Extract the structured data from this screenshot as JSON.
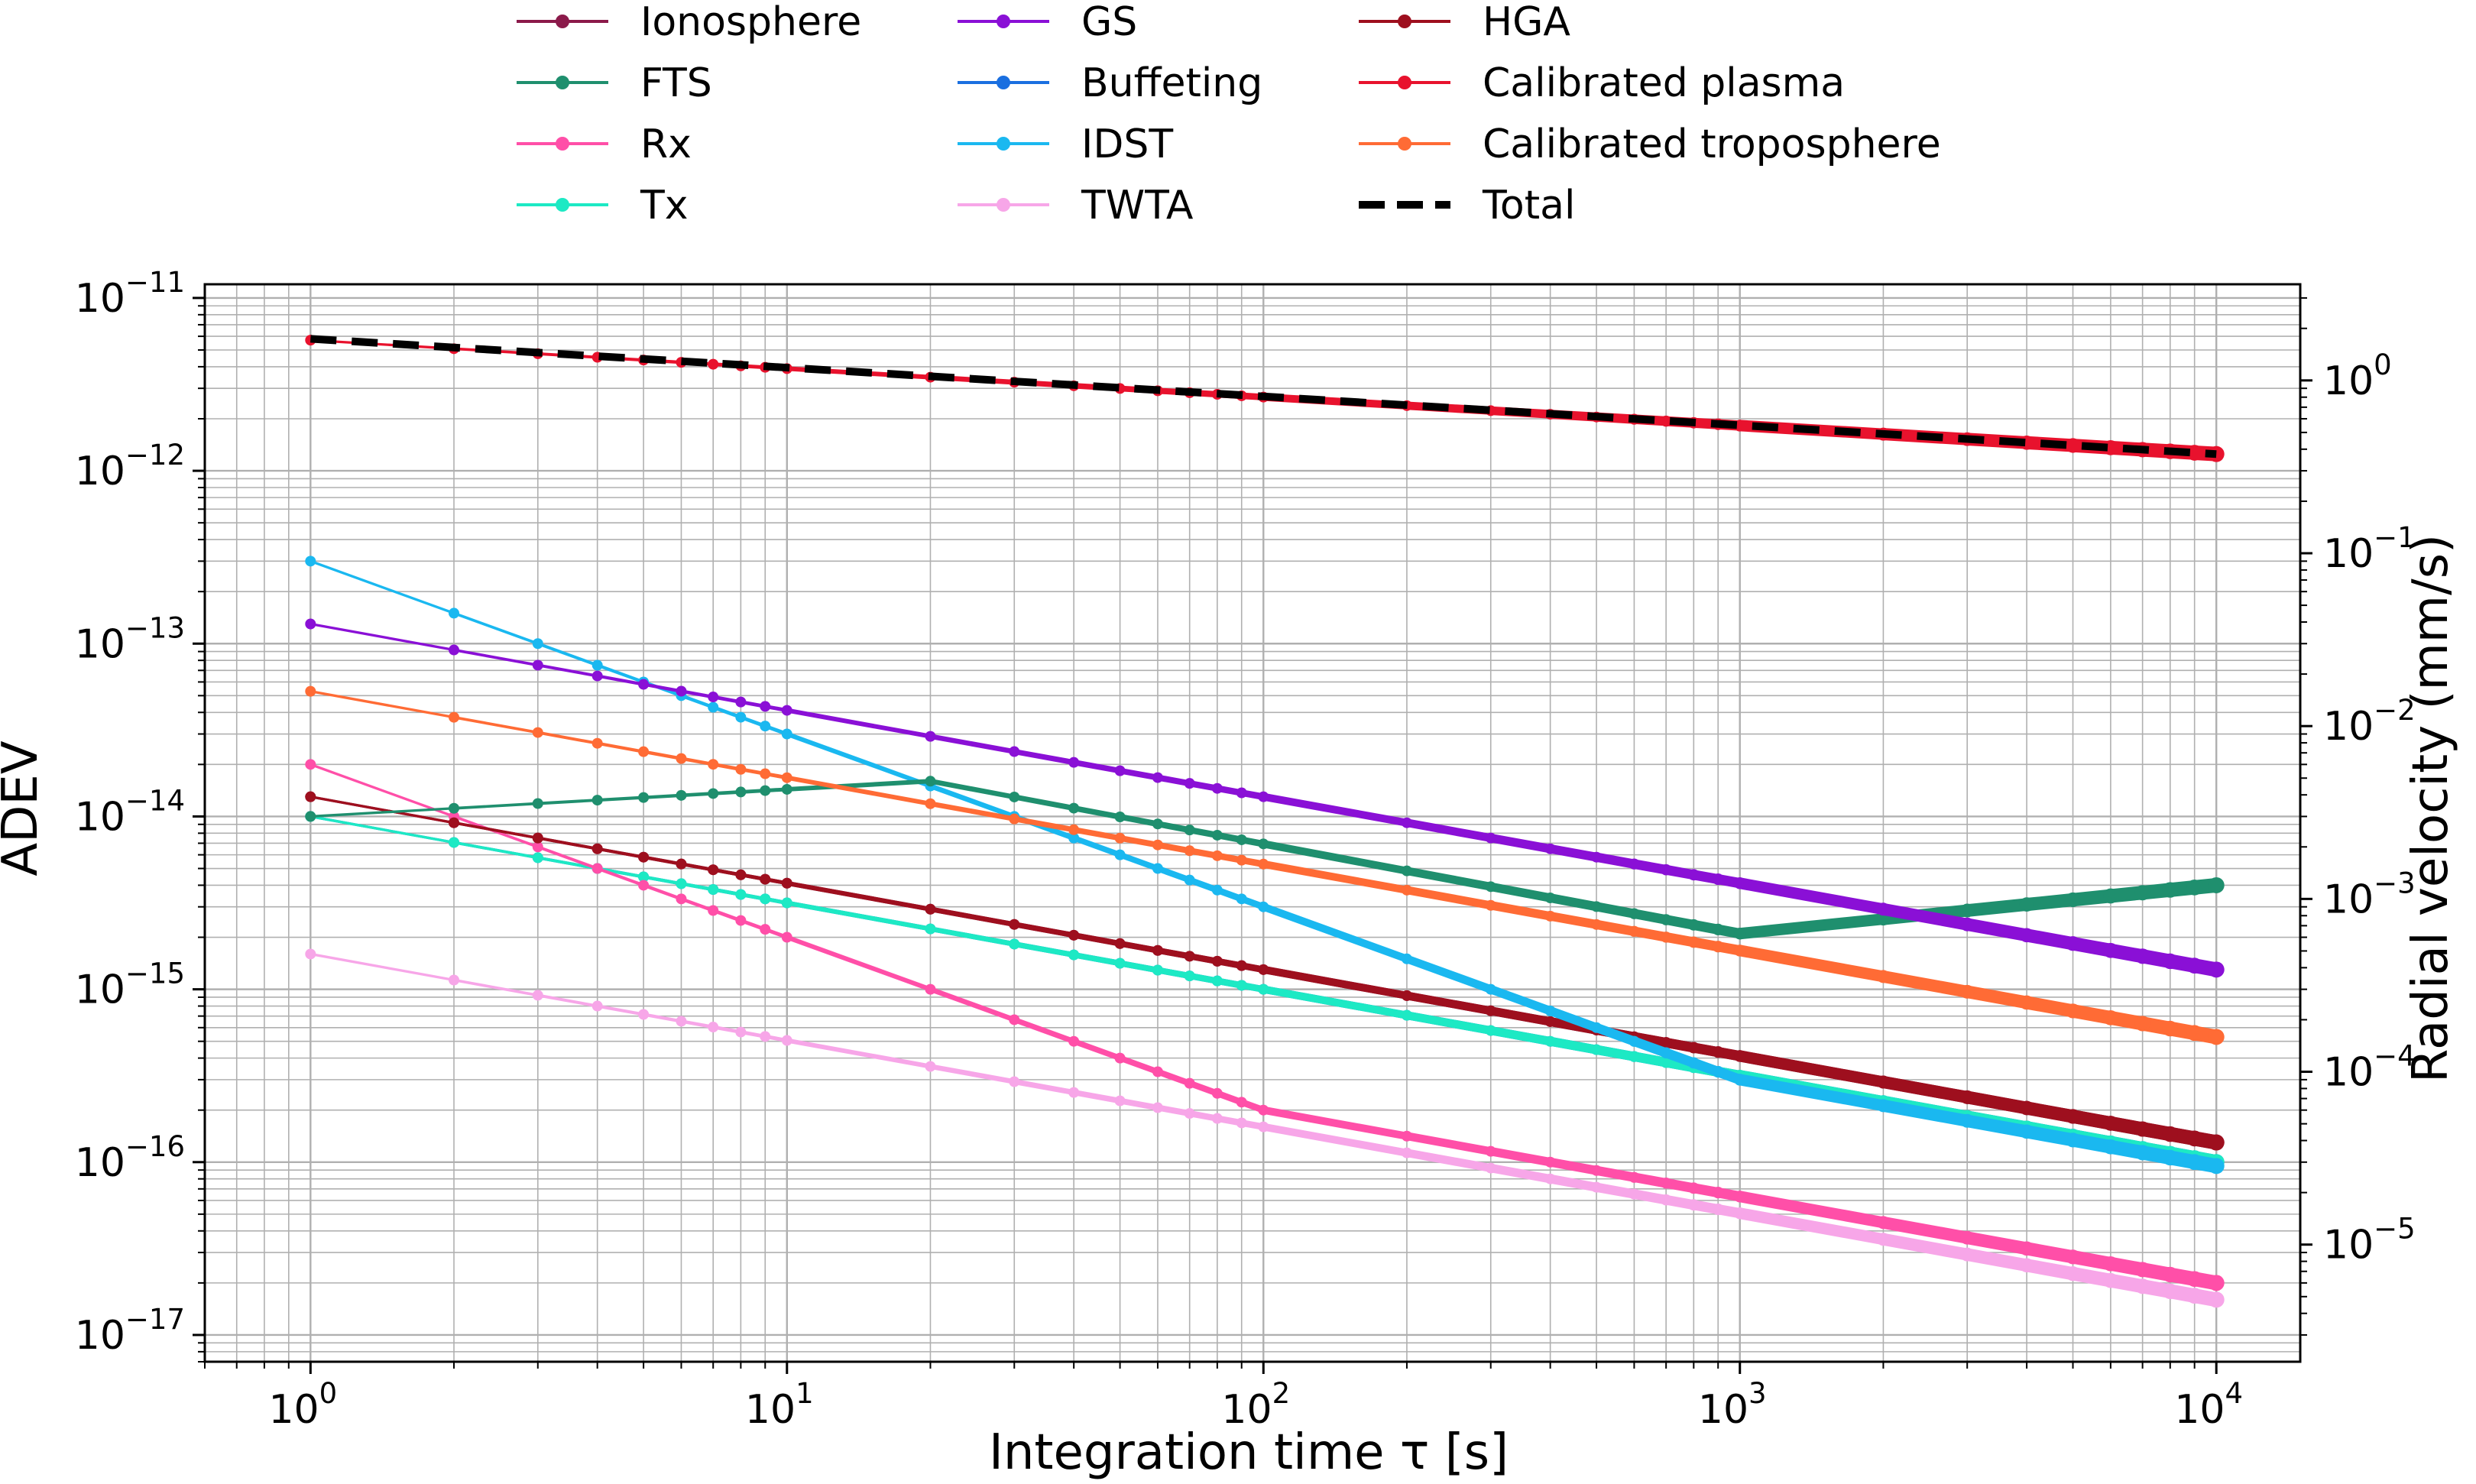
{
  "chart_data": {
    "type": "line",
    "x_scale": "log",
    "y_scale": "log",
    "xlabel": "Integration time τ [s]",
    "ylabel": "ADEV",
    "y2label": "Radial velocity (mm/s)",
    "xlim": [
      0.6,
      15000
    ],
    "ylim": [
      7e-18,
      1.2e-11
    ],
    "y2lim": [
      2.1e-06,
      3.6
    ],
    "grid": "major and minor",
    "legend": "above plot, 3 columns",
    "x_ticks": [
      {
        "value": 1,
        "base": "10",
        "exp": "0"
      },
      {
        "value": 10,
        "base": "10",
        "exp": "1"
      },
      {
        "value": 100,
        "base": "10",
        "exp": "2"
      },
      {
        "value": 1000,
        "base": "10",
        "exp": "3"
      },
      {
        "value": 10000,
        "base": "10",
        "exp": "4"
      }
    ],
    "y_ticks": [
      {
        "value": 1e-11,
        "base": "10",
        "exp": "−11"
      },
      {
        "value": 1e-12,
        "base": "10",
        "exp": "−12"
      },
      {
        "value": 1e-13,
        "base": "10",
        "exp": "−13"
      },
      {
        "value": 1e-14,
        "base": "10",
        "exp": "−14"
      },
      {
        "value": 1e-15,
        "base": "10",
        "exp": "−15"
      },
      {
        "value": 1e-16,
        "base": "10",
        "exp": "−16"
      },
      {
        "value": 1e-17,
        "base": "10",
        "exp": "−17"
      }
    ],
    "y2_ticks": [
      {
        "value": 1,
        "base": "10",
        "exp": "0"
      },
      {
        "value": 0.1,
        "base": "10",
        "exp": "−1"
      },
      {
        "value": 0.01,
        "base": "10",
        "exp": "−2"
      },
      {
        "value": 0.001,
        "base": "10",
        "exp": "−3"
      },
      {
        "value": 0.0001,
        "base": "10",
        "exp": "−4"
      },
      {
        "value": 1e-05,
        "base": "10",
        "exp": "−5"
      }
    ],
    "series": [
      {
        "name": "Ionosphere",
        "color": "#8b1a4a",
        "style": "line+markers",
        "points": [
          [
            1,
            1.3e-14
          ],
          [
            10000,
            1.3e-16
          ]
        ]
      },
      {
        "name": "FTS",
        "color": "#1f8f6e",
        "style": "line+markers",
        "points": [
          [
            1,
            1e-14
          ],
          [
            20,
            1.6e-14
          ],
          [
            1000,
            2.1e-15
          ],
          [
            10000,
            4e-15
          ]
        ]
      },
      {
        "name": "Rx",
        "color": "#ff4fa8",
        "style": "line+markers",
        "points": [
          [
            1,
            2e-14
          ],
          [
            100,
            2e-16
          ],
          [
            10000,
            2e-17
          ]
        ]
      },
      {
        "name": "Tx",
        "color": "#1de9c4",
        "style": "line+markers",
        "points": [
          [
            1,
            1e-14
          ],
          [
            10000,
            1e-16
          ]
        ]
      },
      {
        "name": "GS",
        "color": "#8a10d6",
        "style": "line+markers",
        "points": [
          [
            1,
            1.3e-13
          ],
          [
            10000,
            1.3e-15
          ]
        ]
      },
      {
        "name": "Buffeting",
        "color": "#1a6fe0",
        "style": "line+markers",
        "points": [
          [
            1,
            1e-14
          ],
          [
            10000,
            1e-16
          ]
        ]
      },
      {
        "name": "IDST",
        "color": "#1ab8f0",
        "style": "line+markers",
        "points": [
          [
            1,
            3e-13
          ],
          [
            10,
            3e-14
          ],
          [
            1000,
            3e-16
          ],
          [
            10000,
            9.5e-17
          ]
        ]
      },
      {
        "name": "TWTA",
        "color": "#f7a6e8",
        "style": "line+markers",
        "points": [
          [
            1,
            1.6e-15
          ],
          [
            10000,
            1.6e-17
          ]
        ]
      },
      {
        "name": "HGA",
        "color": "#9e0f1e",
        "style": "line+markers",
        "points": [
          [
            1,
            1.3e-14
          ],
          [
            10000,
            1.3e-16
          ]
        ]
      },
      {
        "name": "Calibrated plasma",
        "color": "#e8122d",
        "style": "line+markers",
        "points": [
          [
            1,
            5.7e-12
          ],
          [
            10000,
            1.25e-12
          ]
        ]
      },
      {
        "name": "Calibrated troposphere",
        "color": "#ff6b35",
        "style": "line+markers",
        "points": [
          [
            1,
            5.3e-14
          ],
          [
            10000,
            5.3e-16
          ]
        ]
      },
      {
        "name": "Total",
        "color": "#000000",
        "style": "dashed",
        "points": [
          [
            1,
            5.8e-12
          ],
          [
            10000,
            1.25e-12
          ]
        ]
      }
    ]
  }
}
